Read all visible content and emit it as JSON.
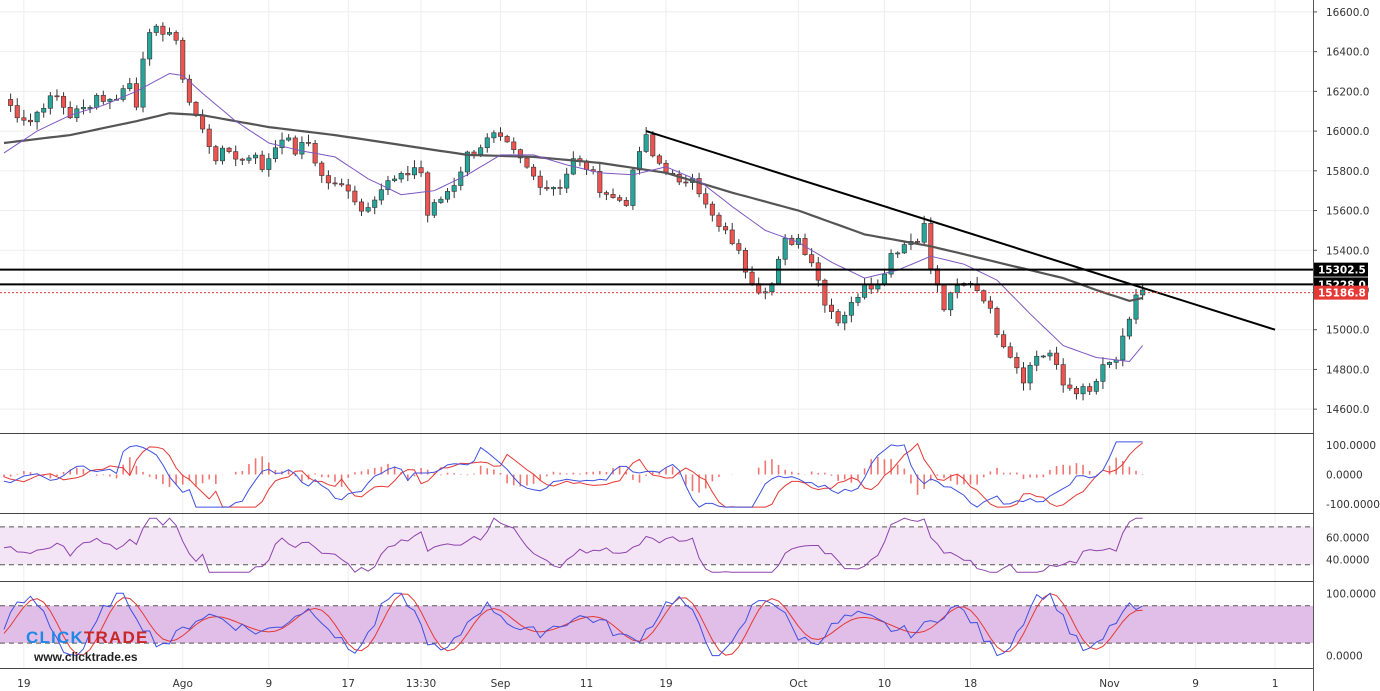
{
  "chart_data": {
    "type": "candlestick",
    "title": "",
    "price_axis": {
      "ylim": [
        14480,
        16660
      ],
      "ticks": [
        "16600.0",
        "16400.0",
        "16200.0",
        "16000.0",
        "15800.0",
        "15600.0",
        "15400.0",
        "15200.0",
        "15000.0",
        "14800.0",
        "14600.0"
      ],
      "tick_values": [
        16600,
        16400,
        16200,
        16000,
        15800,
        15600,
        15400,
        15200,
        15000,
        14800,
        14600
      ]
    },
    "x_axis": {
      "labels": [
        "19",
        "Ago",
        "9",
        "17",
        "13:30",
        "Sep",
        "11",
        "19",
        "Oct",
        "10",
        "18",
        "Nov",
        "9",
        "1"
      ],
      "label_bar_index": [
        3,
        27,
        40,
        52,
        63,
        75,
        88,
        100,
        120,
        133,
        146,
        167,
        180,
        192
      ]
    },
    "horizontal_levels": [
      {
        "name": "resistance-upper",
        "value": 15302.5,
        "label": "15302.5",
        "color": "#000000"
      },
      {
        "name": "resistance-lower",
        "value": 15228.0,
        "label": "15228.0",
        "color": "#000000"
      },
      {
        "name": "last-price",
        "value": 15186.8,
        "label": "15186.8",
        "color": "#e53935"
      }
    ],
    "trendline": {
      "from": [
        97,
        16000
      ],
      "to": [
        192,
        15000
      ]
    },
    "series": [
      {
        "name": "price",
        "points": [
          [
            0,
            16160
          ],
          [
            2,
            16090
          ],
          [
            4,
            16050
          ],
          [
            6,
            16140
          ],
          [
            8,
            16170
          ],
          [
            10,
            16080
          ],
          [
            12,
            16110
          ],
          [
            14,
            16180
          ],
          [
            16,
            16150
          ],
          [
            18,
            16210
          ],
          [
            19,
            16240
          ],
          [
            20,
            16140
          ],
          [
            21,
            16390
          ],
          [
            22,
            16470
          ],
          [
            23,
            16500
          ],
          [
            24,
            16510
          ],
          [
            25,
            16500
          ],
          [
            26,
            16430
          ],
          [
            27,
            16280
          ],
          [
            28,
            16150
          ],
          [
            30,
            16000
          ],
          [
            32,
            15870
          ],
          [
            34,
            15900
          ],
          [
            36,
            15850
          ],
          [
            38,
            15900
          ],
          [
            39,
            15790
          ],
          [
            40,
            15870
          ],
          [
            42,
            15980
          ],
          [
            44,
            15900
          ],
          [
            46,
            15940
          ],
          [
            48,
            15770
          ],
          [
            50,
            15720
          ],
          [
            52,
            15720
          ],
          [
            54,
            15600
          ],
          [
            56,
            15680
          ],
          [
            58,
            15740
          ],
          [
            60,
            15760
          ],
          [
            62,
            15820
          ],
          [
            63,
            15790
          ],
          [
            64,
            15580
          ],
          [
            66,
            15660
          ],
          [
            68,
            15740
          ],
          [
            70,
            15880
          ],
          [
            72,
            15930
          ],
          [
            74,
            15970
          ],
          [
            76,
            15920
          ],
          [
            78,
            15850
          ],
          [
            80,
            15770
          ],
          [
            82,
            15720
          ],
          [
            84,
            15730
          ],
          [
            86,
            15850
          ],
          [
            88,
            15820
          ],
          [
            90,
            15720
          ],
          [
            92,
            15660
          ],
          [
            94,
            15650
          ],
          [
            96,
            15900
          ],
          [
            97,
            15960
          ],
          [
            98,
            15870
          ],
          [
            100,
            15810
          ],
          [
            102,
            15720
          ],
          [
            104,
            15790
          ],
          [
            106,
            15620
          ],
          [
            108,
            15510
          ],
          [
            110,
            15450
          ],
          [
            112,
            15310
          ],
          [
            114,
            15210
          ],
          [
            116,
            15230
          ],
          [
            118,
            15440
          ],
          [
            120,
            15460
          ],
          [
            122,
            15350
          ],
          [
            124,
            15150
          ],
          [
            126,
            15050
          ],
          [
            128,
            15120
          ],
          [
            130,
            15250
          ],
          [
            132,
            15220
          ],
          [
            134,
            15390
          ],
          [
            136,
            15430
          ],
          [
            138,
            15470
          ],
          [
            139,
            15520
          ],
          [
            140,
            15310
          ],
          [
            142,
            15110
          ],
          [
            144,
            15210
          ],
          [
            146,
            15240
          ],
          [
            148,
            15170
          ],
          [
            150,
            15000
          ],
          [
            152,
            14880
          ],
          [
            154,
            14760
          ],
          [
            156,
            14870
          ],
          [
            158,
            14880
          ],
          [
            160,
            14720
          ],
          [
            162,
            14700
          ],
          [
            164,
            14680
          ],
          [
            166,
            14800
          ],
          [
            168,
            14850
          ],
          [
            170,
            15030
          ],
          [
            171,
            15180
          ],
          [
            172,
            15200
          ]
        ]
      },
      {
        "name": "ma-short",
        "color": "#7e57c2",
        "points": [
          [
            0,
            15890
          ],
          [
            5,
            16000
          ],
          [
            10,
            16080
          ],
          [
            15,
            16130
          ],
          [
            20,
            16200
          ],
          [
            25,
            16290
          ],
          [
            27,
            16280
          ],
          [
            30,
            16190
          ],
          [
            35,
            16050
          ],
          [
            40,
            15940
          ],
          [
            45,
            15900
          ],
          [
            50,
            15870
          ],
          [
            55,
            15760
          ],
          [
            60,
            15680
          ],
          [
            65,
            15700
          ],
          [
            70,
            15780
          ],
          [
            75,
            15880
          ],
          [
            80,
            15880
          ],
          [
            85,
            15830
          ],
          [
            90,
            15790
          ],
          [
            95,
            15780
          ],
          [
            100,
            15820
          ],
          [
            105,
            15750
          ],
          [
            110,
            15620
          ],
          [
            115,
            15500
          ],
          [
            120,
            15440
          ],
          [
            125,
            15340
          ],
          [
            130,
            15260
          ],
          [
            135,
            15300
          ],
          [
            140,
            15370
          ],
          [
            145,
            15330
          ],
          [
            150,
            15250
          ],
          [
            155,
            15080
          ],
          [
            160,
            14920
          ],
          [
            165,
            14860
          ],
          [
            170,
            14840
          ],
          [
            172,
            14920
          ]
        ]
      },
      {
        "name": "ma-long",
        "color": "#555555",
        "points": [
          [
            0,
            15940
          ],
          [
            10,
            15980
          ],
          [
            20,
            16050
          ],
          [
            25,
            16090
          ],
          [
            30,
            16080
          ],
          [
            40,
            16020
          ],
          [
            50,
            15980
          ],
          [
            60,
            15930
          ],
          [
            70,
            15880
          ],
          [
            80,
            15870
          ],
          [
            90,
            15840
          ],
          [
            100,
            15790
          ],
          [
            110,
            15690
          ],
          [
            120,
            15600
          ],
          [
            130,
            15480
          ],
          [
            140,
            15420
          ],
          [
            150,
            15340
          ],
          [
            160,
            15260
          ],
          [
            165,
            15200
          ],
          [
            170,
            15145
          ],
          [
            172,
            15160
          ]
        ]
      }
    ],
    "indicators": [
      {
        "name": "macd",
        "ticks": [
          "100.0000",
          "0.0000",
          "-100.0000"
        ],
        "tick_values": [
          100,
          0,
          -100
        ],
        "ylim": [
          -130,
          130
        ],
        "lines": [
          {
            "name": "macd-line",
            "color": "#3f51e0"
          },
          {
            "name": "signal-line",
            "color": "#e53935"
          }
        ]
      },
      {
        "name": "rsi",
        "ticks": [
          "60.0000",
          "40.0000"
        ],
        "tick_values": [
          60,
          40
        ],
        "ylim": [
          20,
          80
        ],
        "band": [
          35,
          70
        ]
      },
      {
        "name": "stochastic",
        "ticks": [
          "100.0000",
          "0.0000"
        ],
        "tick_values": [
          100,
          0
        ],
        "ylim": [
          -20,
          115
        ],
        "band": [
          20,
          80
        ]
      }
    ]
  },
  "watermark": {
    "brand_a": "CLICK",
    "brand_b": "TRADE",
    "url": "www.clicktrade.es"
  }
}
